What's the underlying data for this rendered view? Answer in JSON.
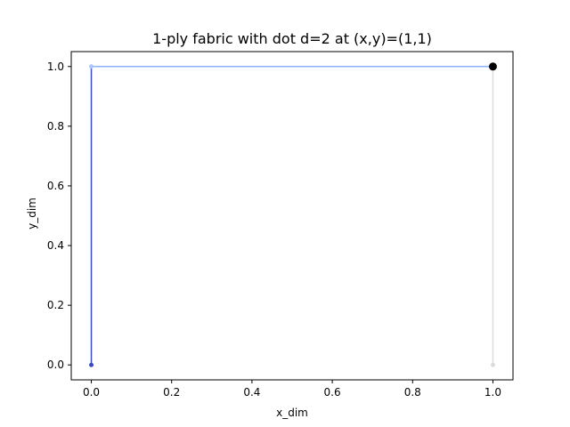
{
  "chart_data": {
    "type": "line",
    "title": "1-ply fabric with dot d=2 at (x,y)=(1,1)",
    "xlabel": "x_dim",
    "ylabel": "y_dim",
    "xlim": [
      -0.05,
      1.05
    ],
    "ylim": [
      -0.05,
      1.05
    ],
    "xticks": [
      0.0,
      0.2,
      0.4,
      0.6,
      0.8,
      1.0
    ],
    "yticks": [
      0.0,
      0.2,
      0.4,
      0.6,
      0.8,
      1.0
    ],
    "xtick_labels": [
      "0.0",
      "0.2",
      "0.4",
      "0.6",
      "0.8",
      "1.0"
    ],
    "ytick_labels": [
      "0.0",
      "0.2",
      "0.4",
      "0.6",
      "0.8",
      "1.0"
    ],
    "grid": false,
    "series": [
      {
        "x": [
          0,
          0
        ],
        "y": [
          0,
          1
        ],
        "color": "#3b4cc0"
      },
      {
        "x": [
          0,
          1
        ],
        "y": [
          1,
          1
        ],
        "color": "#8db0fe"
      },
      {
        "x": [
          1,
          1
        ],
        "y": [
          0,
          1
        ],
        "color": "#dddcdc"
      }
    ],
    "points": [
      {
        "x": 0,
        "y": 0,
        "color": "#3b4cc0"
      },
      {
        "x": 0,
        "y": 1,
        "color": "#aac7fd"
      },
      {
        "x": 1,
        "y": 0,
        "color": "#dddcdc"
      }
    ],
    "dot": {
      "x": 1,
      "y": 1,
      "color": "#000000"
    }
  }
}
